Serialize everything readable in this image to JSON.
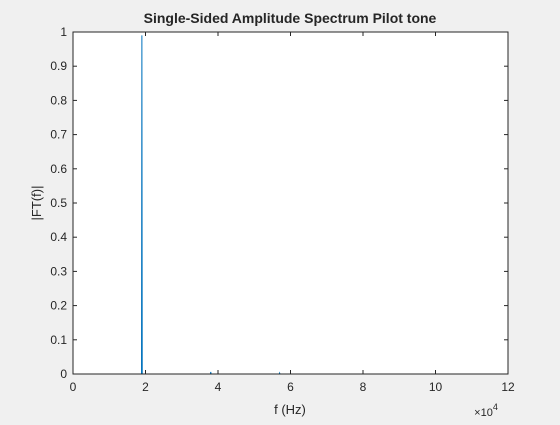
{
  "chart_data": {
    "type": "line",
    "title": "Single-Sided Amplitude Spectrum Pilot tone",
    "xlabel": "f (Hz)",
    "ylabel": "|FT(f)|",
    "xlim": [
      0,
      120000
    ],
    "ylim": [
      0,
      1
    ],
    "x_ticks": [
      0,
      20000,
      40000,
      60000,
      80000,
      100000,
      120000
    ],
    "x_tick_labels": [
      "0",
      "2",
      "4",
      "6",
      "8",
      "10",
      "12"
    ],
    "x_exponent_label": "×10",
    "x_exponent_power": "4",
    "y_ticks": [
      0,
      0.1,
      0.2,
      0.3,
      0.4,
      0.5,
      0.6,
      0.7,
      0.8,
      0.9,
      1
    ],
    "y_tick_labels": [
      "0",
      "0.1",
      "0.2",
      "0.3",
      "0.4",
      "0.5",
      "0.6",
      "0.7",
      "0.8",
      "0.9",
      "1"
    ],
    "grid": false,
    "series": [
      {
        "color": "#0072bd",
        "x": [
          0,
          18900,
          19000,
          19100,
          37900,
          38000,
          38100,
          56900,
          57000,
          57100,
          120000
        ],
        "y": [
          0,
          0,
          0.99,
          0,
          0,
          0.006,
          0,
          0,
          0.003,
          0,
          0
        ]
      }
    ]
  }
}
